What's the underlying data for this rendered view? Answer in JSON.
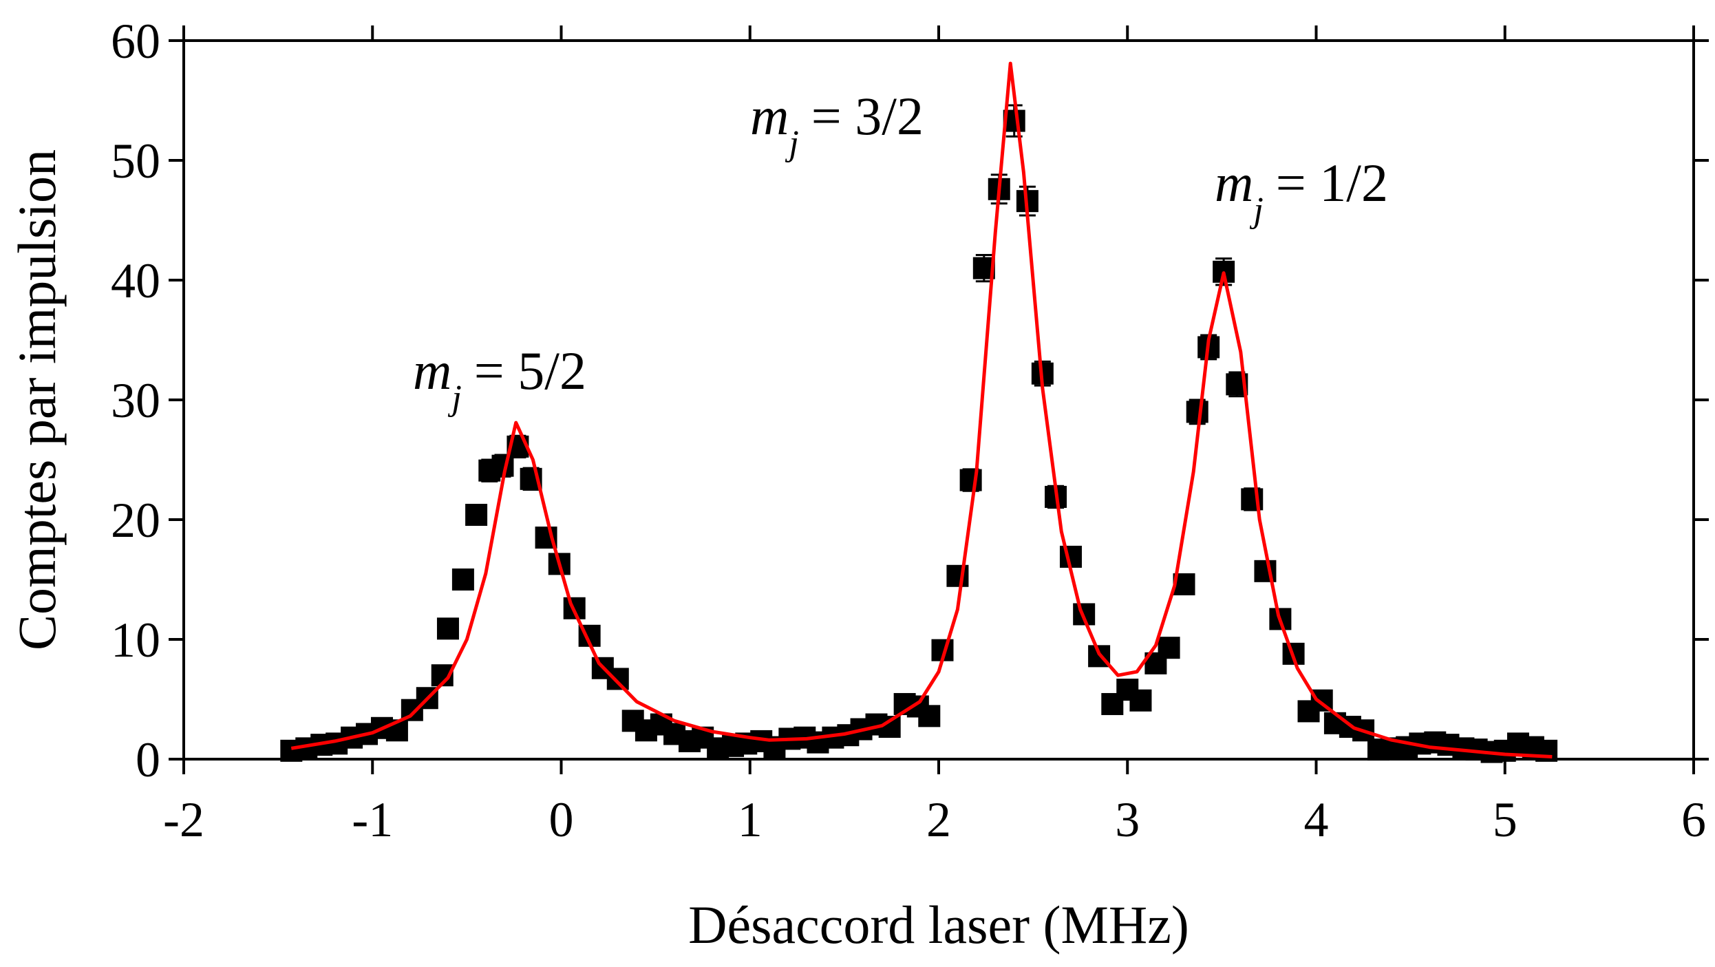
{
  "chart_data": {
    "type": "scatter",
    "x_label": "Désaccord laser (MHz)",
    "y_label": "Comptes par impulsion",
    "xlim": [
      -2,
      6
    ],
    "ylim": [
      0,
      60
    ],
    "xticks": [
      -2,
      -1,
      0,
      1,
      2,
      3,
      4,
      5,
      6
    ],
    "yticks": [
      0,
      10,
      20,
      30,
      40,
      50,
      60
    ],
    "series": [
      {
        "color": "#000000",
        "marker": "square",
        "x": [
          -1.43,
          -1.35,
          -1.27,
          -1.19,
          -1.11,
          -1.03,
          -0.95,
          -0.87,
          -0.79,
          -0.71,
          -0.63,
          -0.6,
          -0.52,
          -0.45,
          -0.38,
          -0.31,
          -0.23,
          -0.16,
          -0.08,
          -0.01,
          0.07,
          0.15,
          0.22,
          0.3,
          0.38,
          0.45,
          0.53,
          0.6,
          0.68,
          0.75,
          0.83,
          0.91,
          0.98,
          1.06,
          1.13,
          1.21,
          1.29,
          1.36,
          1.44,
          1.52,
          1.59,
          1.67,
          1.74,
          1.82,
          1.89,
          1.95,
          2.02,
          2.1,
          2.17,
          2.24,
          2.32,
          2.4,
          2.47,
          2.55,
          2.62,
          2.7,
          2.77,
          2.85,
          2.92,
          3.0,
          3.07,
          3.15,
          3.22,
          3.3,
          3.37,
          3.43,
          3.51,
          3.58,
          3.66,
          3.73,
          3.81,
          3.88,
          3.96,
          4.03,
          4.1,
          4.18,
          4.25,
          4.33,
          4.4,
          4.48,
          4.55,
          4.63,
          4.7,
          4.78,
          4.85,
          4.93,
          5.0,
          5.07,
          5.15,
          5.22
        ],
        "values": [
          0.7,
          0.9,
          1.2,
          1.3,
          1.8,
          2.1,
          2.6,
          2.4,
          4.1,
          5.1,
          7.0,
          10.9,
          15.0,
          20.4,
          24.1,
          24.5,
          26.1,
          23.4,
          18.5,
          16.3,
          12.6,
          10.3,
          7.6,
          6.7,
          3.2,
          2.4,
          2.9,
          2.1,
          1.5,
          1.8,
          0.9,
          1.1,
          1.3,
          1.5,
          1.0,
          1.7,
          1.8,
          1.4,
          1.8,
          2.0,
          2.5,
          2.9,
          2.7,
          4.6,
          4.4,
          3.6,
          9.1,
          15.3,
          23.3,
          41.0,
          47.6,
          53.3,
          46.6,
          32.2,
          21.9,
          16.9,
          12.1,
          8.6,
          4.6,
          5.8,
          4.9,
          8.0,
          9.3,
          14.6,
          29.0,
          34.4,
          40.7,
          31.3,
          21.7,
          15.7,
          11.7,
          8.8,
          4.0,
          4.9,
          3.0,
          2.7,
          2.4,
          0.8,
          0.9,
          1.0,
          1.3,
          1.4,
          1.2,
          0.9,
          0.8,
          0.6,
          0.7,
          1.3,
          1.0,
          0.7
        ],
        "errors": [
          0.5,
          0.5,
          0.5,
          0.5,
          0.5,
          0.5,
          0.5,
          0.5,
          0.5,
          0.5,
          0.5,
          0.7,
          0.7,
          0.8,
          0.9,
          0.9,
          0.9,
          0.9,
          0.8,
          0.7,
          0.7,
          0.7,
          0.5,
          0.5,
          0.5,
          0.5,
          0.5,
          0.5,
          0.5,
          0.5,
          0.5,
          0.5,
          0.5,
          0.5,
          0.5,
          0.5,
          0.5,
          0.5,
          0.5,
          0.5,
          0.5,
          0.5,
          0.5,
          0.5,
          0.5,
          0.5,
          0.5,
          0.7,
          0.9,
          1.1,
          1.2,
          1.3,
          1.2,
          1.0,
          0.9,
          0.7,
          0.7,
          0.5,
          0.5,
          0.5,
          0.5,
          0.5,
          0.5,
          0.7,
          1.0,
          1.0,
          1.1,
          1.0,
          0.9,
          0.7,
          0.7,
          0.5,
          0.5,
          0.5,
          0.5,
          0.5,
          0.5,
          0.5,
          0.5,
          0.5,
          0.5,
          0.5,
          0.5,
          0.5,
          0.5,
          0.5,
          0.5,
          0.5,
          0.5,
          0.5
        ]
      },
      {
        "color": "#ff0000",
        "marker": "line",
        "x": [
          -1.43,
          -1.2,
          -1.0,
          -0.8,
          -0.6,
          -0.5,
          -0.4,
          -0.3,
          -0.24,
          -0.15,
          -0.05,
          0.05,
          0.2,
          0.4,
          0.6,
          0.8,
          1.0,
          1.1,
          1.3,
          1.5,
          1.7,
          1.9,
          2.0,
          2.1,
          2.2,
          2.3,
          2.38,
          2.45,
          2.55,
          2.65,
          2.75,
          2.85,
          2.95,
          3.05,
          3.15,
          3.25,
          3.35,
          3.43,
          3.51,
          3.6,
          3.7,
          3.8,
          3.9,
          4.0,
          4.2,
          4.4,
          4.6,
          4.8,
          5.0,
          5.25
        ],
        "values": [
          0.9,
          1.5,
          2.2,
          3.6,
          6.8,
          10.0,
          15.5,
          24.0,
          28.1,
          25.0,
          18.5,
          13.0,
          8.0,
          4.8,
          3.2,
          2.3,
          1.8,
          1.6,
          1.7,
          2.1,
          2.8,
          4.8,
          7.3,
          12.5,
          24.0,
          44.0,
          58.1,
          49.0,
          31.0,
          19.0,
          12.5,
          8.8,
          7.0,
          7.3,
          9.5,
          14.5,
          24.0,
          35.0,
          40.6,
          34.0,
          20.0,
          12.0,
          7.6,
          5.0,
          2.6,
          1.6,
          1.0,
          0.7,
          0.4,
          0.2
        ]
      }
    ],
    "annotations": [
      {
        "symbol": "m",
        "subscript": "j",
        "text": "= 5/2"
      },
      {
        "symbol": "m",
        "subscript": "j",
        "text": "= 3/2"
      },
      {
        "symbol": "m",
        "subscript": "j",
        "text": "= 1/2"
      }
    ]
  }
}
